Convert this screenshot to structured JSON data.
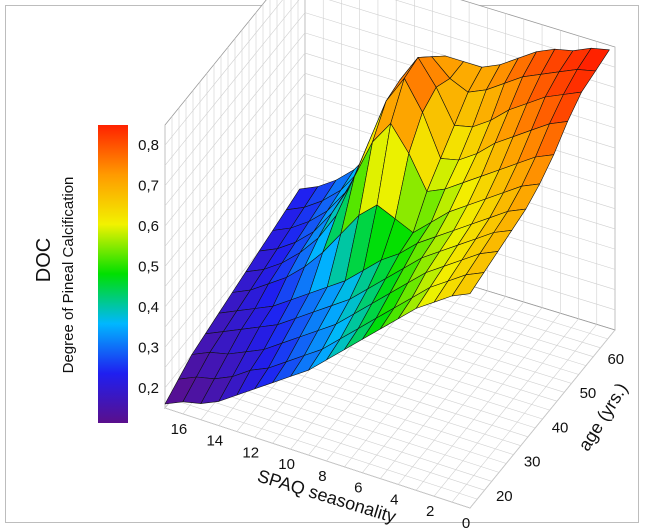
{
  "chart_data": {
    "type": "surface3d",
    "zlabel": "DOC",
    "zlabel_sub": "Degree of Pineal Calcification",
    "xlabel": "SPAQ seasonality",
    "ylabel": "age (yrs.)",
    "x_ticks": [
      "16",
      "14",
      "12",
      "10",
      "8",
      "6",
      "4",
      "2",
      "0"
    ],
    "y_ticks": [
      "20",
      "30",
      "40",
      "50",
      "60"
    ],
    "z_ticks": [
      "0,2",
      "0,3",
      "0,4",
      "0,5",
      "0,6",
      "0,7",
      "0,8"
    ],
    "xlim": [
      17,
      0
    ],
    "ylim": [
      15,
      67
    ],
    "zlim": [
      0.15,
      0.85
    ],
    "colorbar": [
      "#5a0f8c",
      "#1f1ff0",
      "#00b7ff",
      "#00e000",
      "#f2f200",
      "#ff9a00",
      "#ff2200"
    ],
    "age": [
      15,
      20,
      25,
      30,
      35,
      40,
      45,
      50,
      55,
      60,
      65
    ],
    "seasonality": [
      17,
      16,
      15,
      14,
      13,
      12,
      11,
      10,
      9,
      8,
      7,
      6,
      5,
      4,
      3,
      2,
      1,
      0
    ],
    "doc": [
      [
        0.16,
        0.18,
        0.19,
        0.21,
        0.24,
        0.27,
        0.3,
        0.33,
        0.36,
        0.4,
        0.44,
        0.48,
        0.52,
        0.56,
        0.6,
        0.63,
        0.66,
        0.68
      ],
      [
        0.18,
        0.2,
        0.21,
        0.23,
        0.26,
        0.28,
        0.31,
        0.34,
        0.37,
        0.41,
        0.45,
        0.49,
        0.53,
        0.57,
        0.61,
        0.64,
        0.67,
        0.69
      ],
      [
        0.2,
        0.22,
        0.23,
        0.25,
        0.27,
        0.3,
        0.33,
        0.36,
        0.39,
        0.43,
        0.47,
        0.51,
        0.55,
        0.59,
        0.62,
        0.65,
        0.68,
        0.7
      ],
      [
        0.21,
        0.23,
        0.25,
        0.27,
        0.29,
        0.32,
        0.35,
        0.38,
        0.41,
        0.45,
        0.49,
        0.53,
        0.57,
        0.6,
        0.63,
        0.66,
        0.69,
        0.71
      ],
      [
        0.22,
        0.24,
        0.26,
        0.28,
        0.31,
        0.34,
        0.37,
        0.4,
        0.44,
        0.48,
        0.51,
        0.55,
        0.58,
        0.61,
        0.64,
        0.67,
        0.7,
        0.72
      ],
      [
        0.23,
        0.25,
        0.28,
        0.31,
        0.35,
        0.4,
        0.46,
        0.52,
        0.56,
        0.54,
        0.52,
        0.56,
        0.6,
        0.63,
        0.66,
        0.69,
        0.72,
        0.74
      ],
      [
        0.24,
        0.26,
        0.29,
        0.33,
        0.38,
        0.45,
        0.56,
        0.66,
        0.72,
        0.66,
        0.58,
        0.6,
        0.63,
        0.66,
        0.69,
        0.72,
        0.75,
        0.77
      ],
      [
        0.25,
        0.27,
        0.3,
        0.34,
        0.4,
        0.48,
        0.6,
        0.72,
        0.79,
        0.72,
        0.62,
        0.63,
        0.66,
        0.7,
        0.73,
        0.76,
        0.79,
        0.81
      ],
      [
        0.26,
        0.28,
        0.31,
        0.35,
        0.41,
        0.5,
        0.62,
        0.73,
        0.8,
        0.74,
        0.66,
        0.67,
        0.7,
        0.74,
        0.77,
        0.8,
        0.82,
        0.84
      ],
      [
        0.27,
        0.29,
        0.32,
        0.36,
        0.42,
        0.5,
        0.6,
        0.7,
        0.76,
        0.72,
        0.7,
        0.72,
        0.75,
        0.78,
        0.8,
        0.82,
        0.84,
        0.85
      ],
      [
        0.28,
        0.3,
        0.33,
        0.37,
        0.43,
        0.5,
        0.58,
        0.66,
        0.72,
        0.72,
        0.72,
        0.74,
        0.77,
        0.8,
        0.82,
        0.83,
        0.85,
        0.86
      ]
    ]
  }
}
